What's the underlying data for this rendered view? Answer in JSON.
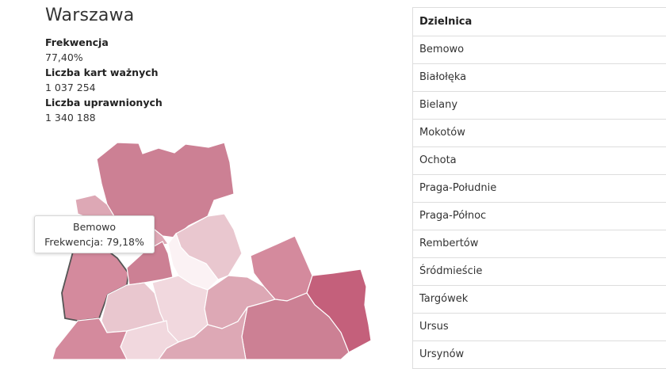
{
  "city": {
    "title": "Warszawa"
  },
  "stats": [
    {
      "label": "Frekwencja",
      "value": "77,40%"
    },
    {
      "label": "Liczba kart ważnych",
      "value": "1 037 254"
    },
    {
      "label": "Liczba uprawnionych",
      "value": "1 340 188"
    }
  ],
  "tooltip": {
    "district": "Bemowo",
    "text": "Frekwencja: 79,18%"
  },
  "table": {
    "header": "Dzielnica",
    "rows": [
      "Bemowo",
      "Białołęka",
      "Bielany",
      "Mokotów",
      "Ochota",
      "Praga-Południe",
      "Praga-Północ",
      "Rembertów",
      "Śródmieście",
      "Targówek",
      "Ursus",
      "Ursynów"
    ]
  },
  "map_colors": {
    "dark": "#c4607b",
    "medium_dark": "#cc8094",
    "medium": "#d48a9d",
    "light_medium": "#dda8b5",
    "light": "#e9c7cf",
    "very_light": "#f1d8de",
    "lightest": "#fbf2f4"
  }
}
